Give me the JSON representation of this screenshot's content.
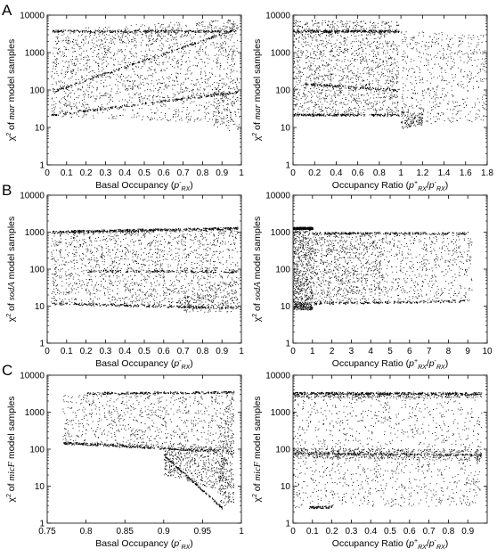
{
  "panel_letters": [
    "A",
    "B",
    "C"
  ],
  "chart_data": [
    {
      "id": "A-left",
      "type": "scatter",
      "panel": "A",
      "ylabel_gene": "mar",
      "xlabel": {
        "prefix": "Basal Occupancy (",
        "sym": "p",
        "sup": "-",
        "sub": "RX",
        "suffix": ")"
      },
      "xlim": [
        0,
        1
      ],
      "ylim": [
        1,
        10000
      ],
      "yscale": "log",
      "xticks": [
        0,
        0.1,
        0.2,
        0.3,
        0.4,
        0.5,
        0.6,
        0.7,
        0.8,
        0.9,
        1
      ],
      "xtick_labels": [
        "0",
        "0.1",
        "0.2",
        "0.3",
        "0.4",
        "0.5",
        "0.6",
        "0.7",
        "0.8",
        "0.9",
        "1"
      ],
      "yticks": [
        1,
        10,
        100,
        1000,
        10000
      ],
      "ytick_labels": [
        "1",
        "10",
        "100",
        "1000",
        "10000"
      ],
      "series": [
        {
          "density": 2200,
          "regions": [
            {
              "x": [
                0.02,
                0.98
              ],
              "y_lo": [
                20,
                12
              ],
              "y_hi": [
                4000,
                4000
              ],
              "w": 0.55
            },
            {
              "x": [
                0.02,
                0.98
              ],
              "y_lo": [
                90,
                4500
              ],
              "y_hi": [
                4000,
                8000
              ],
              "w": 0.12
            },
            {
              "x": [
                0.02,
                0.98
              ],
              "y_lo": [
                22,
                90
              ],
              "y_hi": [
                90,
                4500
              ],
              "w": 0.15
            },
            {
              "x": [
                0.85,
                0.99
              ],
              "y_lo": [
                9,
                8
              ],
              "y_hi": [
                120,
                200
              ],
              "w": 0.06
            }
          ],
          "edges": [
            {
              "x": [
                0.02,
                0.98
              ],
              "y": [
                22,
                90
              ],
              "n": 220
            },
            {
              "x": [
                0.02,
                0.98
              ],
              "y": [
                90,
                4500
              ],
              "n": 200
            },
            {
              "x": [
                0.02,
                0.98
              ],
              "y": [
                3800,
                3800
              ],
              "n": 260
            }
          ]
        }
      ]
    },
    {
      "id": "A-right",
      "type": "scatter",
      "panel": "A",
      "ylabel_gene": "mar",
      "xlabel": {
        "prefix": "Occupancy Ratio (",
        "sym": "p",
        "sup": "+",
        "sub": "RX",
        "mid": "/",
        "sym2": "p",
        "sup2": "-",
        "sub2": "RX",
        "suffix": ")"
      },
      "xlim": [
        0,
        1.8
      ],
      "ylim": [
        1,
        10000
      ],
      "yscale": "log",
      "xticks": [
        0,
        0.2,
        0.4,
        0.6,
        0.8,
        1,
        1.2,
        1.4,
        1.6,
        1.8
      ],
      "xtick_labels": [
        "0",
        "0.2",
        "0.4",
        "0.6",
        "0.8",
        "1",
        "1.2",
        "1.4",
        "1.6",
        "1.8"
      ],
      "yticks": [
        1,
        10,
        100,
        1000,
        10000
      ],
      "ytick_labels": [
        "1",
        "10",
        "100",
        "1000",
        "10000"
      ],
      "series": [
        {
          "density": 2200,
          "regions": [
            {
              "x": [
                0.0,
                0.98
              ],
              "y_lo": [
                22,
                22
              ],
              "y_hi": [
                4000,
                4000
              ],
              "w": 0.6
            },
            {
              "x": [
                0.0,
                0.98
              ],
              "y_lo": [
                4000,
                4000
              ],
              "y_hi": [
                7500,
                7000
              ],
              "w": 0.08
            },
            {
              "x": [
                1.0,
                1.78
              ],
              "y_lo": [
                12,
                15
              ],
              "y_hi": [
                4000,
                3000
              ],
              "w": 0.26
            },
            {
              "x": [
                1.0,
                1.2
              ],
              "y_lo": [
                9,
                12
              ],
              "y_hi": [
                30,
                25
              ],
              "w": 0.06
            }
          ],
          "edges": [
            {
              "x": [
                0.0,
                0.98
              ],
              "y": [
                22,
                22
              ],
              "n": 200
            },
            {
              "x": [
                0.0,
                0.98
              ],
              "y": [
                3800,
                3800
              ],
              "n": 260
            },
            {
              "x": [
                0.1,
                0.98
              ],
              "y": [
                150,
                100
              ],
              "n": 120
            }
          ]
        }
      ]
    },
    {
      "id": "B-left",
      "type": "scatter",
      "panel": "B",
      "ylabel_gene": "sodA",
      "xlabel": {
        "prefix": "Basal Occupancy (",
        "sym": "p",
        "sup": "-",
        "sub": "RX",
        "suffix": ")"
      },
      "xlim": [
        0,
        1
      ],
      "ylim": [
        1,
        10000
      ],
      "yscale": "log",
      "xticks": [
        0,
        0.1,
        0.2,
        0.3,
        0.4,
        0.5,
        0.6,
        0.7,
        0.8,
        0.9,
        1
      ],
      "xtick_labels": [
        "0",
        "0.1",
        "0.2",
        "0.3",
        "0.4",
        "0.5",
        "0.6",
        "0.7",
        "0.8",
        "0.9",
        "1"
      ],
      "yticks": [
        1,
        10,
        100,
        1000,
        10000
      ],
      "ytick_labels": [
        "1",
        "10",
        "100",
        "1000",
        "10000"
      ],
      "series": [
        {
          "density": 2200,
          "regions": [
            {
              "x": [
                0.02,
                0.98
              ],
              "y_lo": [
                12,
                9
              ],
              "y_hi": [
                1100,
                1300
              ],
              "w": 0.75
            },
            {
              "x": [
                0.7,
                0.99
              ],
              "y_lo": [
                7,
                7
              ],
              "y_hi": [
                15,
                60
              ],
              "w": 0.08
            },
            {
              "x": [
                0.02,
                0.98
              ],
              "y_lo": [
                900,
                1100
              ],
              "y_hi": [
                1100,
                1400
              ],
              "w": 0.1
            }
          ],
          "edges": [
            {
              "x": [
                0.02,
                0.98
              ],
              "y": [
                12,
                9
              ],
              "n": 220
            },
            {
              "x": [
                0.02,
                0.98
              ],
              "y": [
                1050,
                1300
              ],
              "n": 300
            },
            {
              "x": [
                0.2,
                0.98
              ],
              "y": [
                90,
                90
              ],
              "n": 140
            }
          ]
        }
      ]
    },
    {
      "id": "B-right",
      "type": "scatter",
      "panel": "B",
      "ylabel_gene": "sodA",
      "xlabel": {
        "prefix": "Occupancy Ratio (",
        "sym": "p",
        "sup": "+",
        "sub": "RX",
        "mid": "/",
        "sym2": "p",
        "sup2": "-",
        "sub2": "RX",
        "suffix": ")"
      },
      "xlim": [
        0,
        10
      ],
      "ylim": [
        1,
        10000
      ],
      "yscale": "log",
      "xticks": [
        0,
        1,
        2,
        3,
        4,
        5,
        6,
        7,
        8,
        9,
        10
      ],
      "xtick_labels": [
        "0",
        "1",
        "2",
        "3",
        "4",
        "5",
        "6",
        "7",
        "8",
        "9",
        "10"
      ],
      "yticks": [
        1,
        10,
        100,
        1000,
        10000
      ],
      "ytick_labels": [
        "1",
        "10",
        "100",
        "1000",
        "10000"
      ],
      "series": [
        {
          "density": 2200,
          "regions": [
            {
              "x": [
                0.0,
                1.0
              ],
              "y_lo": [
                8,
                8
              ],
              "y_hi": [
                1400,
                1400
              ],
              "w": 0.3
            },
            {
              "x": [
                1.0,
                4.5
              ],
              "y_lo": [
                12,
                12
              ],
              "y_hi": [
                1000,
                1000
              ],
              "w": 0.4
            },
            {
              "x": [
                4.5,
                9.2
              ],
              "y_lo": [
                13,
                14
              ],
              "y_hi": [
                1000,
                1000
              ],
              "w": 0.24
            },
            {
              "x": [
                0.0,
                1.0
              ],
              "y_lo": [
                8,
                8
              ],
              "y_hi": [
                14,
                12
              ],
              "w": 0.06
            }
          ],
          "edges": [
            {
              "x": [
                0.0,
                1.0
              ],
              "y": [
                1300,
                1300
              ],
              "n": 200
            },
            {
              "x": [
                1.0,
                9.0
              ],
              "y": [
                950,
                950
              ],
              "n": 220
            },
            {
              "x": [
                1.0,
                9.0
              ],
              "y": [
                12,
                14
              ],
              "n": 160
            }
          ]
        }
      ]
    },
    {
      "id": "C-left",
      "type": "scatter",
      "panel": "C",
      "ylabel_gene": "micF",
      "xlabel": {
        "prefix": "Basal Occupancy (",
        "sym": "p",
        "sup": "-",
        "sub": "RX",
        "suffix": ")"
      },
      "xlim": [
        0.75,
        1
      ],
      "ylim": [
        1,
        10000
      ],
      "yscale": "log",
      "xticks": [
        0.75,
        0.8,
        0.85,
        0.9,
        0.95,
        1
      ],
      "xtick_labels": [
        "0.75",
        "0.8",
        "0.85",
        "0.9",
        "0.95",
        "1"
      ],
      "yticks": [
        1,
        10,
        100,
        1000,
        10000
      ],
      "ytick_labels": [
        "1",
        "10",
        "100",
        "1000",
        "10000"
      ],
      "series": [
        {
          "density": 2200,
          "regions": [
            {
              "x": [
                0.77,
                0.99
              ],
              "y_lo": [
                150,
                100
              ],
              "y_hi": [
                3000,
                3500
              ],
              "w": 0.35
            },
            {
              "x": [
                0.9,
                0.99
              ],
              "y_lo": [
                20,
                3
              ],
              "y_hi": [
                100,
                100
              ],
              "w": 0.25
            },
            {
              "x": [
                0.77,
                0.99
              ],
              "y_lo": [
                135,
                80
              ],
              "y_hi": [
                160,
                110
              ],
              "w": 0.1
            },
            {
              "x": [
                0.97,
                0.99
              ],
              "y_lo": [
                2.5,
                3
              ],
              "y_hi": [
                200,
                3500
              ],
              "w": 0.1
            }
          ],
          "edges": [
            {
              "x": [
                0.77,
                0.97
              ],
              "y": [
                150,
                90
              ],
              "n": 200
            },
            {
              "x": [
                0.8,
                0.99
              ],
              "y": [
                3300,
                3500
              ],
              "n": 220
            },
            {
              "x": [
                0.9,
                0.975
              ],
              "y": [
                70,
                2.6
              ],
              "n": 120
            }
          ]
        }
      ]
    },
    {
      "id": "C-right",
      "type": "scatter",
      "panel": "C",
      "ylabel_gene": "micF",
      "xlabel": {
        "prefix": "Occupancy Ratio (",
        "sym": "p",
        "sup": "+",
        "sub": "RX",
        "mid": "/",
        "sym2": "p",
        "sup2": "-",
        "sub2": "RX",
        "suffix": ")"
      },
      "xlim": [
        0,
        1
      ],
      "ylim": [
        1,
        10000
      ],
      "yscale": "log",
      "xticks": [
        0,
        0.1,
        0.2,
        0.3,
        0.4,
        0.5,
        0.6,
        0.7,
        0.8,
        0.9
      ],
      "xtick_labels": [
        "0",
        "0.1",
        "0.2",
        "0.3",
        "0.4",
        "0.5",
        "0.6",
        "0.7",
        "0.8",
        "0.9"
      ],
      "yticks": [
        1,
        10,
        100,
        1000,
        10000
      ],
      "ytick_labels": [
        "1",
        "10",
        "100",
        "1000",
        "10000"
      ],
      "series": [
        {
          "density": 2200,
          "regions": [
            {
              "x": [
                0.0,
                0.97
              ],
              "y_lo": [
                2.5,
                3
              ],
              "y_hi": [
                3500,
                3500
              ],
              "w": 0.55
            },
            {
              "x": [
                0.0,
                0.97
              ],
              "y_lo": [
                60,
                50
              ],
              "y_hi": [
                110,
                100
              ],
              "w": 0.25
            },
            {
              "x": [
                0.0,
                0.97
              ],
              "y_lo": [
                2500,
                2500
              ],
              "y_hi": [
                3600,
                3600
              ],
              "w": 0.2
            }
          ],
          "edges": [
            {
              "x": [
                0.0,
                0.97
              ],
              "y": [
                3300,
                3200
              ],
              "n": 260
            },
            {
              "x": [
                0.0,
                0.97
              ],
              "y": [
                80,
                70
              ],
              "n": 200
            },
            {
              "x": [
                0.08,
                0.2
              ],
              "y": [
                2.7,
                2.8
              ],
              "n": 60
            }
          ]
        }
      ]
    }
  ],
  "colors": {
    "axis": "#000000",
    "points": "#000000",
    "background": "#ffffff"
  }
}
